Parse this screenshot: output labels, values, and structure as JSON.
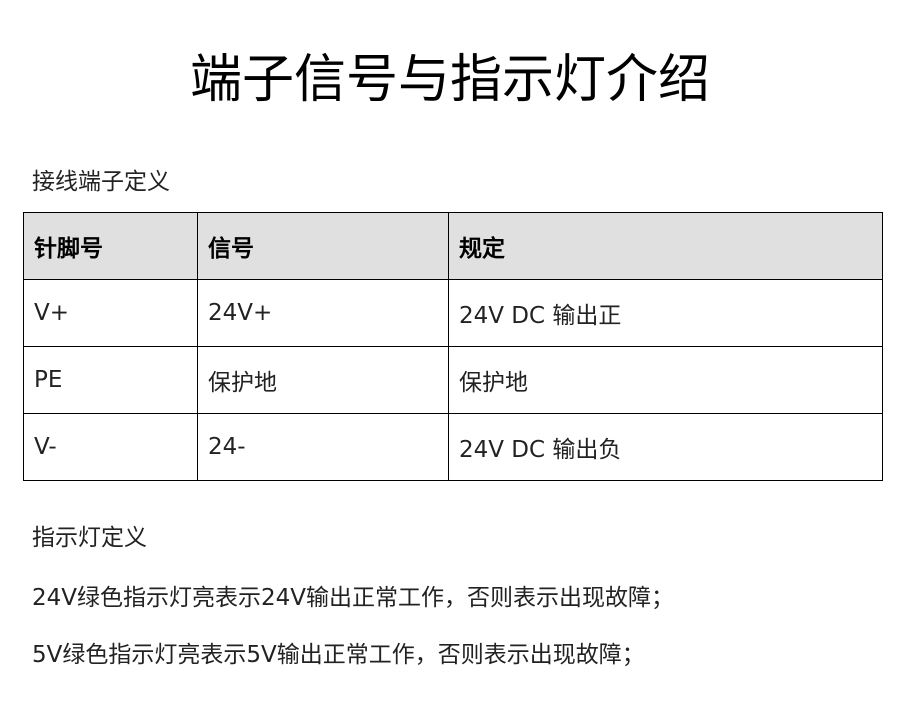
{
  "title": "端子信号与指示灯介绍",
  "terminal_section": {
    "heading": "接线端子定义",
    "columns": [
      "针脚号",
      "信号",
      "规定"
    ],
    "rows": [
      [
        "V+",
        "24V+",
        "24V DC 输出正"
      ],
      [
        "PE",
        "保护地",
        "保护地"
      ],
      [
        "V-",
        "24-",
        "24V DC  输出负"
      ]
    ]
  },
  "indicator_section": {
    "heading": "指示灯定义",
    "lines": [
      "24V绿色指示灯亮表示24V输出正常工作，否则表示出现故障；",
      "5V绿色指示灯亮表示5V输出正常工作，否则表示出现故障；"
    ]
  }
}
